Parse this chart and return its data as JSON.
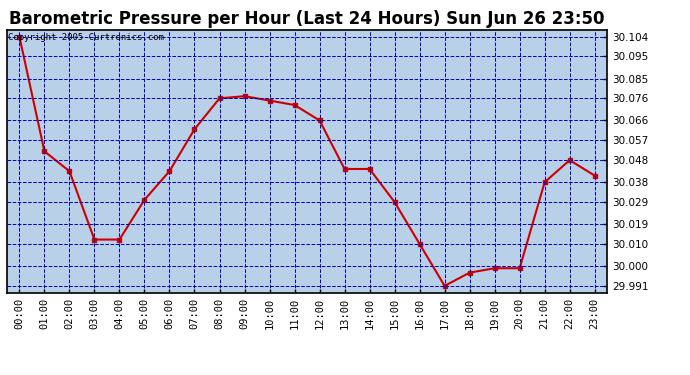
{
  "title": "Barometric Pressure per Hour (Last 24 Hours) Sun Jun 26 23:50",
  "copyright": "Copyright 2005 Curtronics.com",
  "x_labels": [
    "00:00",
    "01:00",
    "02:00",
    "03:00",
    "04:00",
    "05:00",
    "06:00",
    "07:00",
    "08:00",
    "09:00",
    "10:00",
    "11:00",
    "12:00",
    "13:00",
    "14:00",
    "15:00",
    "16:00",
    "17:00",
    "18:00",
    "19:00",
    "20:00",
    "21:00",
    "22:00",
    "23:00"
  ],
  "y_values": [
    30.104,
    30.052,
    30.043,
    30.012,
    30.012,
    30.03,
    30.043,
    30.062,
    30.076,
    30.077,
    30.075,
    30.073,
    30.066,
    30.044,
    30.044,
    30.029,
    30.01,
    29.991,
    29.997,
    29.999,
    29.999,
    30.038,
    30.048,
    30.041
  ],
  "ylim_min": 29.988,
  "ylim_max": 30.107,
  "yticks": [
    29.991,
    30.0,
    30.01,
    30.019,
    30.029,
    30.038,
    30.048,
    30.057,
    30.066,
    30.076,
    30.085,
    30.095,
    30.104
  ],
  "line_color": "#cc0000",
  "marker_color": "#cc0000",
  "plot_bg_color": "#b8d0e8",
  "grid_color": "#0000bb",
  "title_fontsize": 12,
  "axis_label_fontsize": 7.5,
  "copyright_fontsize": 6.5
}
